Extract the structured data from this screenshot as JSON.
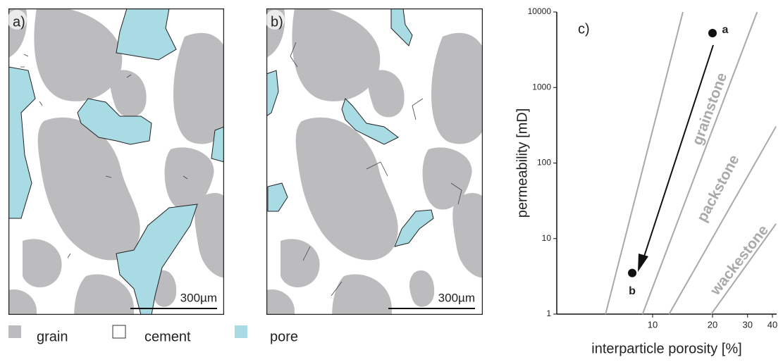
{
  "panels": [
    {
      "label": "a)",
      "scale_bar": "300µm"
    },
    {
      "label": "b)",
      "scale_bar": "300µm"
    }
  ],
  "legend": [
    {
      "name": "grain",
      "color": "#bcbcbe"
    },
    {
      "name": "cement",
      "color": "#ffffff"
    },
    {
      "name": "pore",
      "color": "#a8dbe3"
    }
  ],
  "chart_data": {
    "type": "scatter",
    "label": "c)",
    "xlabel": "interparticle porosity [%]",
    "ylabel": "permeability [mD]",
    "xlog": true,
    "ylog": true,
    "xlim": [
      3.3,
      42
    ],
    "ylim": [
      1,
      10000
    ],
    "xticks": [
      10,
      20,
      30,
      40
    ],
    "yticks": [
      1,
      10,
      100,
      1000,
      10000
    ],
    "points": {
      "x": [
        20,
        7.9
      ],
      "y": [
        5250,
        3.5
      ],
      "labels": [
        "a",
        "b"
      ],
      "color": "#111111"
    },
    "boundaries": {
      "color": "#a9a9a9",
      "lines": [
        {
          "x": [
            5.8,
            14.2
          ],
          "y": [
            1,
            10000
          ]
        },
        {
          "x": [
            8.9,
            33.5
          ],
          "y": [
            1,
            10000
          ]
        },
        {
          "x": [
            12.1,
            41.7
          ],
          "y": [
            1,
            305
          ]
        },
        {
          "x": [
            19.7,
            41.7
          ],
          "y": [
            1,
            15.7
          ]
        }
      ]
    },
    "facies_labels": [
      "grainstone",
      "packstone",
      "wackestone"
    ]
  }
}
